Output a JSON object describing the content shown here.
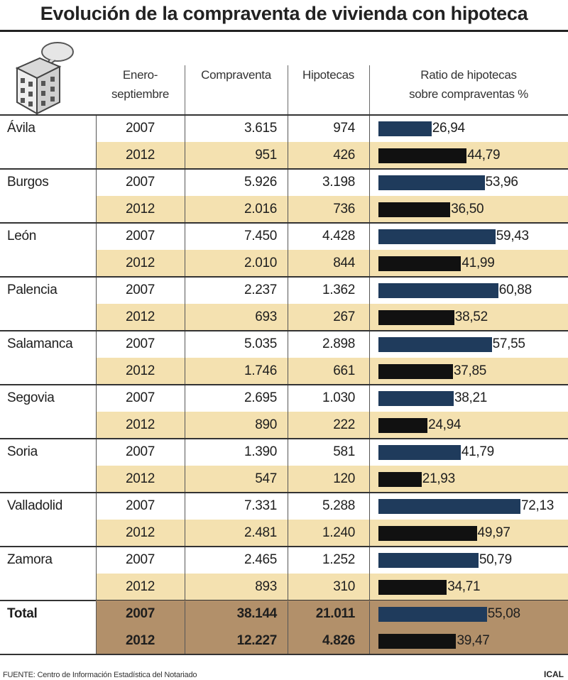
{
  "header": {
    "title": "Evolución de la compraventa de vivienda con hipoteca",
    "col_period": [
      "Enero-",
      "septiembre"
    ],
    "col_sales": "Compraventa",
    "col_mortgages": "Hipotecas",
    "col_ratio": [
      "Ratio de hipotecas",
      "sobre compraventas %"
    ]
  },
  "colors": {
    "bar_2007": "#1f3b5c",
    "bar_2012": "#111111",
    "row_2012_band": "#f4e1b0",
    "total_band": "#b2906a"
  },
  "chart_data": {
    "type": "table",
    "title": "Evolución de la compraventa de vivienda con hipoteca",
    "columns": [
      "Enero-septiembre",
      "Compraventa",
      "Hipotecas",
      "Ratio de hipotecas sobre compraventas %"
    ],
    "ratio_axis_range": [
      0,
      80
    ],
    "rows": [
      {
        "region": "Ávila",
        "data": [
          {
            "year": "2007",
            "sales": "3.615",
            "mortgages": "974",
            "ratio": 26.94,
            "ratio_label": "26,94"
          },
          {
            "year": "2012",
            "sales": "951",
            "mortgages": "426",
            "ratio": 44.79,
            "ratio_label": "44,79"
          }
        ]
      },
      {
        "region": "Burgos",
        "data": [
          {
            "year": "2007",
            "sales": "5.926",
            "mortgages": "3.198",
            "ratio": 53.96,
            "ratio_label": "53,96"
          },
          {
            "year": "2012",
            "sales": "2.016",
            "mortgages": "736",
            "ratio": 36.5,
            "ratio_label": "36,50"
          }
        ]
      },
      {
        "region": "León",
        "data": [
          {
            "year": "2007",
            "sales": "7.450",
            "mortgages": "4.428",
            "ratio": 59.43,
            "ratio_label": "59,43"
          },
          {
            "year": "2012",
            "sales": "2.010",
            "mortgages": "844",
            "ratio": 41.99,
            "ratio_label": "41,99"
          }
        ]
      },
      {
        "region": "Palencia",
        "data": [
          {
            "year": "2007",
            "sales": "2.237",
            "mortgages": "1.362",
            "ratio": 60.88,
            "ratio_label": "60,88"
          },
          {
            "year": "2012",
            "sales": "693",
            "mortgages": "267",
            "ratio": 38.52,
            "ratio_label": "38,52"
          }
        ]
      },
      {
        "region": "Salamanca",
        "data": [
          {
            "year": "2007",
            "sales": "5.035",
            "mortgages": "2.898",
            "ratio": 57.55,
            "ratio_label": "57,55"
          },
          {
            "year": "2012",
            "sales": "1.746",
            "mortgages": "661",
            "ratio": 37.85,
            "ratio_label": "37,85"
          }
        ]
      },
      {
        "region": "Segovia",
        "data": [
          {
            "year": "2007",
            "sales": "2.695",
            "mortgages": "1.030",
            "ratio": 38.21,
            "ratio_label": "38,21"
          },
          {
            "year": "2012",
            "sales": "890",
            "mortgages": "222",
            "ratio": 24.94,
            "ratio_label": "24,94"
          }
        ]
      },
      {
        "region": "Soria",
        "data": [
          {
            "year": "2007",
            "sales": "1.390",
            "mortgages": "581",
            "ratio": 41.79,
            "ratio_label": "41,79"
          },
          {
            "year": "2012",
            "sales": "547",
            "mortgages": "120",
            "ratio": 21.93,
            "ratio_label": "21,93"
          }
        ]
      },
      {
        "region": "Valladolid",
        "data": [
          {
            "year": "2007",
            "sales": "7.331",
            "mortgages": "5.288",
            "ratio": 72.13,
            "ratio_label": "72,13"
          },
          {
            "year": "2012",
            "sales": "2.481",
            "mortgages": "1.240",
            "ratio": 49.97,
            "ratio_label": "49,97"
          }
        ]
      },
      {
        "region": "Zamora",
        "data": [
          {
            "year": "2007",
            "sales": "2.465",
            "mortgages": "1.252",
            "ratio": 50.79,
            "ratio_label": "50,79"
          },
          {
            "year": "2012",
            "sales": "893",
            "mortgages": "310",
            "ratio": 34.71,
            "ratio_label": "34,71"
          }
        ]
      }
    ],
    "total": {
      "region": "Total",
      "data": [
        {
          "year": "2007",
          "sales": "38.144",
          "mortgages": "21.011",
          "ratio": 55.08,
          "ratio_label": "55,08"
        },
        {
          "year": "2012",
          "sales": "12.227",
          "mortgages": "4.826",
          "ratio": 39.47,
          "ratio_label": "39,47"
        }
      ]
    }
  },
  "footer": {
    "source": "FUENTE: Centro de Información Estadística del Notariado",
    "credit": "ICAL"
  }
}
